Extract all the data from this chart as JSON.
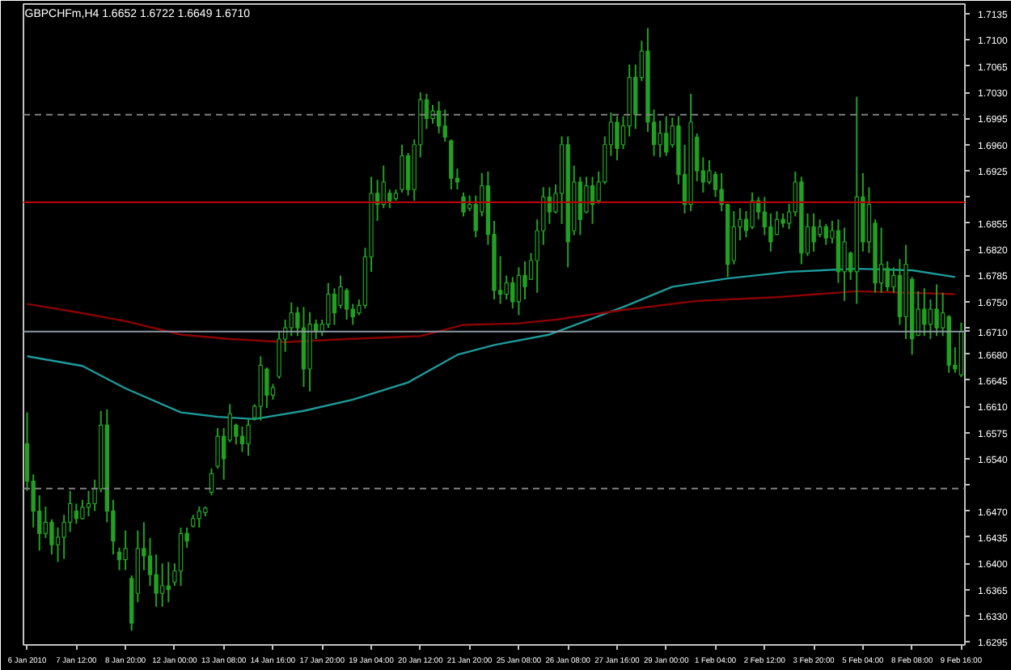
{
  "chart_data": {
    "type": "candlestick",
    "title": "GBPCHFm,H4 1.6652 1.6722 1.6649 1.6710",
    "grid": false,
    "color": "#22a022",
    "categories": [
      "6 Jan 2010",
      null,
      null,
      null,
      null,
      null,
      null,
      null,
      "7 Jan 12:00",
      null,
      null,
      null,
      null,
      null,
      null,
      null,
      "8 Jan 20:00",
      null,
      null,
      null,
      null,
      null,
      null,
      null,
      "12 Jan 00:00",
      null,
      null,
      null,
      null,
      null,
      null,
      null,
      "13 Jan 08:00",
      null,
      null,
      null,
      null,
      null,
      null,
      null,
      "14 Jan 16:00",
      null,
      null,
      null,
      null,
      null,
      null,
      null,
      "17 Jan 20:00",
      null,
      null,
      null,
      null,
      null,
      null,
      null,
      "19 Jan 04:00",
      null,
      null,
      null,
      null,
      null,
      null,
      null,
      "20 Jan 12:00",
      null,
      null,
      null,
      null,
      null,
      null,
      null,
      "21 Jan 20:00",
      null,
      null,
      null,
      null,
      null,
      null,
      null,
      "25 Jan 08:00",
      null,
      null,
      null,
      null,
      null,
      null,
      null,
      "26 Jan 08:00",
      null,
      null,
      null,
      null,
      null,
      null,
      null,
      "27 Jan 16:00",
      null,
      null,
      null,
      null,
      null,
      null,
      null,
      "29 Jan 00:00",
      null,
      null,
      null,
      null,
      null,
      null,
      null,
      "1 Feb 04:00",
      null,
      null,
      null,
      null,
      null,
      null,
      null,
      "2 Feb 12:00",
      null,
      null,
      null,
      null,
      null,
      null,
      null,
      "3 Feb 20:00",
      null,
      null,
      null,
      null,
      null,
      null,
      null,
      "5 Feb 04:00",
      null,
      null,
      null,
      null,
      null,
      null,
      null,
      "8 Feb 08:00",
      null,
      null,
      null,
      null,
      null,
      null,
      null,
      "9 Feb 16:00"
    ],
    "ohlc": [
      [
        1.656,
        1.6602,
        1.6497,
        1.651
      ],
      [
        1.651,
        1.6519,
        1.6448,
        1.647
      ],
      [
        1.647,
        1.6491,
        1.6417,
        1.644
      ],
      [
        1.644,
        1.6476,
        1.6434,
        1.6455
      ],
      [
        1.6455,
        1.6459,
        1.6412,
        1.6425
      ],
      [
        1.6425,
        1.6448,
        1.6402,
        1.6435
      ],
      [
        1.6435,
        1.6465,
        1.6406,
        1.6455
      ],
      [
        1.6455,
        1.6497,
        1.6442,
        1.648
      ],
      [
        1.647,
        1.648,
        1.6453,
        1.646
      ],
      [
        1.646,
        1.6485,
        1.6459,
        1.6475
      ],
      [
        1.6475,
        1.6497,
        1.6463,
        1.648
      ],
      [
        1.648,
        1.6512,
        1.647,
        1.65
      ],
      [
        1.65,
        1.6604,
        1.6495,
        1.6585
      ],
      [
        1.6585,
        1.6606,
        1.6455,
        1.647
      ],
      [
        1.647,
        1.6485,
        1.6412,
        1.643
      ],
      [
        1.6415,
        1.6421,
        1.6391,
        1.6405
      ],
      [
        1.6405,
        1.6444,
        1.6391,
        1.642
      ],
      [
        1.638,
        1.6384,
        1.631,
        1.632
      ],
      [
        1.636,
        1.6444,
        1.6348,
        1.642
      ],
      [
        1.642,
        1.6455,
        1.6391,
        1.641
      ],
      [
        1.641,
        1.6434,
        1.637,
        1.6385
      ],
      [
        1.6385,
        1.6412,
        1.6342,
        1.636
      ],
      [
        1.636,
        1.64,
        1.6342,
        1.637
      ],
      [
        1.637,
        1.6402,
        1.6348,
        1.6365
      ],
      [
        1.6375,
        1.64,
        1.637,
        1.639
      ],
      [
        1.639,
        1.6448,
        1.637,
        1.644
      ],
      [
        1.644,
        1.6448,
        1.6421,
        1.643
      ],
      [
        1.645,
        1.6465,
        1.6448,
        1.646
      ],
      [
        1.646,
        1.6476,
        1.6448,
        1.647
      ],
      [
        1.6468,
        1.6476,
        1.6463,
        1.6474
      ],
      [
        1.6495,
        1.6527,
        1.6491,
        1.652
      ],
      [
        1.653,
        1.6581,
        1.6527,
        1.657
      ],
      [
        1.657,
        1.6581,
        1.6512,
        1.654
      ],
      [
        1.6565,
        1.6613,
        1.6562,
        1.66
      ],
      [
        1.6585,
        1.6587,
        1.6559,
        1.657
      ],
      [
        1.657,
        1.6583,
        1.6549,
        1.656
      ],
      [
        1.656,
        1.6593,
        1.6544,
        1.6585
      ],
      [
        1.6595,
        1.6613,
        1.6591,
        1.661
      ],
      [
        1.661,
        1.6677,
        1.6591,
        1.6665
      ],
      [
        1.666,
        1.6662,
        1.6608,
        1.6625
      ],
      [
        1.6625,
        1.664,
        1.6619,
        1.6635
      ],
      [
        1.665,
        1.6711,
        1.6647,
        1.67
      ],
      [
        1.67,
        1.6726,
        1.6683,
        1.6715
      ],
      [
        1.6715,
        1.6749,
        1.6704,
        1.6735
      ],
      [
        1.6735,
        1.6743,
        1.6704,
        1.6715
      ],
      [
        1.6715,
        1.6743,
        1.6636,
        1.666
      ],
      [
        1.666,
        1.6736,
        1.663,
        1.672
      ],
      [
        1.672,
        1.6726,
        1.67,
        1.671
      ],
      [
        1.671,
        1.6726,
        1.6704,
        1.672
      ],
      [
        1.672,
        1.6775,
        1.6715,
        1.676
      ],
      [
        1.676,
        1.6768,
        1.6719,
        1.6735
      ],
      [
        1.6745,
        1.6785,
        1.6741,
        1.677
      ],
      [
        1.6765,
        1.6768,
        1.6726,
        1.674
      ],
      [
        1.674,
        1.6747,
        1.6719,
        1.673
      ],
      [
        1.6735,
        1.6753,
        1.6732,
        1.6745
      ],
      [
        1.6745,
        1.6822,
        1.6741,
        1.681
      ],
      [
        1.681,
        1.6917,
        1.679,
        1.6895
      ],
      [
        1.6895,
        1.6913,
        1.6858,
        1.688
      ],
      [
        1.688,
        1.6932,
        1.6875,
        1.691
      ],
      [
        1.6895,
        1.69,
        1.6875,
        1.6885
      ],
      [
        1.6888,
        1.69,
        1.6885,
        1.6895
      ],
      [
        1.69,
        1.696,
        1.6896,
        1.6945
      ],
      [
        1.6945,
        1.6949,
        1.6892,
        1.69
      ],
      [
        1.69,
        1.6967,
        1.6885,
        1.696
      ],
      [
        1.696,
        1.703,
        1.6943,
        1.702
      ],
      [
        1.702,
        1.7028,
        1.6981,
        1.6995
      ],
      [
        1.6995,
        1.7013,
        1.6988,
        1.7005
      ],
      [
        1.7005,
        1.7018,
        1.6975,
        1.6985
      ],
      [
        1.6985,
        1.7007,
        1.6964,
        1.697
      ],
      [
        1.6965,
        1.6967,
        1.69,
        1.6915
      ],
      [
        1.6915,
        1.6928,
        1.69,
        1.691
      ],
      [
        1.689,
        1.6896,
        1.6864,
        1.687
      ],
      [
        1.6875,
        1.6892,
        1.6871,
        1.688
      ],
      [
        1.688,
        1.6892,
        1.6836,
        1.6845
      ],
      [
        1.687,
        1.6922,
        1.6864,
        1.6905
      ],
      [
        1.6905,
        1.6924,
        1.6826,
        1.684
      ],
      [
        1.684,
        1.6858,
        1.6753,
        1.6765
      ],
      [
        1.6765,
        1.6811,
        1.6747,
        1.676
      ],
      [
        1.676,
        1.6785,
        1.6753,
        1.6775
      ],
      [
        1.6775,
        1.6783,
        1.6741,
        1.675
      ],
      [
        1.675,
        1.6796,
        1.6732,
        1.6785
      ],
      [
        1.6785,
        1.6804,
        1.6753,
        1.677
      ],
      [
        1.678,
        1.6815,
        1.6779,
        1.6805
      ],
      [
        1.6805,
        1.686,
        1.6762,
        1.6845
      ],
      [
        1.6845,
        1.6903,
        1.6826,
        1.689
      ],
      [
        1.689,
        1.6903,
        1.6854,
        1.687
      ],
      [
        1.687,
        1.6907,
        1.6868,
        1.6895
      ],
      [
        1.6895,
        1.6971,
        1.6854,
        1.696
      ],
      [
        1.696,
        1.6971,
        1.6796,
        1.683
      ],
      [
        1.6845,
        1.6932,
        1.6839,
        1.691
      ],
      [
        1.691,
        1.6917,
        1.6839,
        1.686
      ],
      [
        1.687,
        1.6917,
        1.6868,
        1.6905
      ],
      [
        1.6905,
        1.6917,
        1.6854,
        1.688
      ],
      [
        1.6885,
        1.6924,
        1.6881,
        1.691
      ],
      [
        1.691,
        1.6971,
        1.6907,
        1.696
      ],
      [
        1.696,
        1.7003,
        1.6945,
        1.699
      ],
      [
        1.699,
        1.6998,
        1.6939,
        1.6955
      ],
      [
        1.696,
        1.6998,
        1.6954,
        1.6985
      ],
      [
        1.6985,
        1.7067,
        1.6971,
        1.705
      ],
      [
        1.705,
        1.7067,
        1.6981,
        1.7
      ],
      [
        1.705,
        1.7099,
        1.7045,
        1.7085
      ],
      [
        1.7085,
        1.7116,
        1.6977,
        1.699
      ],
      [
        1.699,
        1.7007,
        1.6945,
        1.696
      ],
      [
        1.696,
        1.6992,
        1.6943,
        1.6975
      ],
      [
        1.6975,
        1.6998,
        1.6945,
        1.695
      ],
      [
        1.696,
        1.6996,
        1.6956,
        1.6985
      ],
      [
        1.6985,
        1.6998,
        1.6907,
        1.692
      ],
      [
        1.692,
        1.696,
        1.6868,
        1.688
      ],
      [
        1.688,
        1.7028,
        1.6871,
        1.699
      ],
      [
        1.697,
        1.6975,
        1.6911,
        1.6925
      ],
      [
        1.6925,
        1.6943,
        1.6896,
        1.691
      ],
      [
        1.691,
        1.6939,
        1.6907,
        1.6925
      ],
      [
        1.692,
        1.6924,
        1.689,
        1.69
      ],
      [
        1.69,
        1.6922,
        1.6871,
        1.688
      ],
      [
        1.688,
        1.6881,
        1.6783,
        1.68
      ],
      [
        1.6805,
        1.6871,
        1.68,
        1.685
      ],
      [
        1.685,
        1.6875,
        1.6832,
        1.686
      ],
      [
        1.686,
        1.6871,
        1.6836,
        1.6845
      ],
      [
        1.685,
        1.6896,
        1.6847,
        1.6885
      ],
      [
        1.6885,
        1.689,
        1.686,
        1.687
      ],
      [
        1.687,
        1.689,
        1.6839,
        1.685
      ],
      [
        1.685,
        1.6868,
        1.6817,
        1.683
      ],
      [
        1.684,
        1.6871,
        1.6839,
        1.686
      ],
      [
        1.686,
        1.6868,
        1.6849,
        1.6855
      ],
      [
        1.6855,
        1.6881,
        1.6847,
        1.687
      ],
      [
        1.687,
        1.6924,
        1.6864,
        1.691
      ],
      [
        1.691,
        1.6917,
        1.68,
        1.6815
      ],
      [
        1.6815,
        1.6868,
        1.6811,
        1.685
      ],
      [
        1.685,
        1.6868,
        1.6817,
        1.683
      ],
      [
        1.684,
        1.686,
        1.6836,
        1.685
      ],
      [
        1.685,
        1.6854,
        1.6826,
        1.6835
      ],
      [
        1.6835,
        1.6858,
        1.6828,
        1.6845
      ],
      [
        1.6845,
        1.686,
        1.6775,
        1.679
      ],
      [
        1.679,
        1.6849,
        1.6751,
        1.683
      ],
      [
        1.6815,
        1.6817,
        1.6779,
        1.679
      ],
      [
        1.679,
        1.7024,
        1.6747,
        1.689
      ],
      [
        1.689,
        1.6922,
        1.6817,
        1.683
      ],
      [
        1.683,
        1.6903,
        1.6815,
        1.688
      ],
      [
        1.6855,
        1.686,
        1.6762,
        1.6775
      ],
      [
        1.6775,
        1.6849,
        1.6762,
        1.68
      ],
      [
        1.6795,
        1.6804,
        1.6764,
        1.677
      ],
      [
        1.677,
        1.6796,
        1.6762,
        1.6785
      ],
      [
        1.6785,
        1.6807,
        1.6719,
        1.673
      ],
      [
        1.673,
        1.6826,
        1.67,
        1.68
      ],
      [
        1.678,
        1.6783,
        1.6679,
        1.67
      ],
      [
        1.6705,
        1.6764,
        1.6704,
        1.674
      ],
      [
        1.674,
        1.6768,
        1.6704,
        1.672
      ],
      [
        1.672,
        1.6753,
        1.67,
        1.674
      ],
      [
        1.674,
        1.6773,
        1.6704,
        1.6715
      ],
      [
        1.6715,
        1.6762,
        1.6704,
        1.6735
      ],
      [
        1.673,
        1.6732,
        1.6655,
        1.6665
      ],
      [
        1.6665,
        1.6689,
        1.6655,
        1.666
      ],
      [
        1.6652,
        1.6722,
        1.6649,
        1.671
      ]
    ],
    "series": [
      {
        "type": "line",
        "color": "#1e9a9a",
        "values": [
          1.6677,
          null,
          null,
          null,
          null,
          null,
          null,
          null,
          null,
          1.6664,
          null,
          null,
          null,
          null,
          null,
          null,
          1.6634,
          null,
          null,
          null,
          null,
          null,
          null,
          null,
          null,
          1.6602,
          null,
          null,
          null,
          null,
          null,
          1.6596,
          null,
          null,
          null,
          null,
          null,
          1.6593,
          null,
          null,
          null,
          null,
          null,
          null,
          null,
          1.6604,
          null,
          null,
          null,
          null,
          null,
          null,
          null,
          1.6619,
          null,
          null,
          null,
          null,
          null,
          null,
          null,
          null,
          1.6642,
          null,
          null,
          null,
          null,
          null,
          null,
          null,
          1.6679,
          null,
          null,
          null,
          null,
          null,
          1.6692,
          null,
          null,
          null,
          null,
          null,
          null,
          null,
          null,
          1.6706,
          null,
          null,
          null,
          null,
          null,
          null,
          null,
          null,
          null,
          null,
          null,
          1.6743,
          null,
          null,
          null,
          null,
          null,
          null,
          null,
          1.677,
          null,
          null,
          null,
          null,
          null,
          null,
          null,
          null,
          1.6781,
          null,
          null,
          null,
          null,
          null,
          null,
          null,
          null,
          null,
          1.679,
          null,
          null,
          null,
          null,
          null,
          null,
          null,
          null,
          null,
          null,
          1.6794,
          null,
          null,
          null,
          null,
          null,
          null,
          null,
          null,
          1.6792,
          null,
          null,
          null,
          null,
          null,
          null,
          1.6783,
          null
        ]
      },
      {
        "type": "line",
        "color": "#8b0000",
        "values": [
          1.6747,
          null,
          null,
          null,
          null,
          null,
          null,
          null,
          1.6736,
          null,
          null,
          null,
          null,
          null,
          null,
          null,
          1.6724,
          null,
          null,
          null,
          null,
          null,
          null,
          null,
          null,
          1.6706,
          null,
          null,
          null,
          null,
          null,
          null,
          null,
          1.67,
          null,
          null,
          null,
          null,
          null,
          null,
          null,
          null,
          1.6696,
          null,
          null,
          null,
          null,
          null,
          null,
          null,
          null,
          null,
          1.67,
          null,
          null,
          null,
          null,
          null,
          null,
          null,
          null,
          null,
          null,
          null,
          1.6704,
          null,
          null,
          null,
          null,
          null,
          null,
          1.6719,
          null,
          null,
          null,
          null,
          null,
          null,
          null,
          null,
          1.6721,
          null,
          null,
          null,
          null,
          null,
          1.6726,
          null,
          null,
          null,
          null,
          null,
          null,
          null,
          null,
          null,
          null,
          1.6739,
          null,
          null,
          null,
          null,
          null,
          null,
          null,
          null,
          null,
          null,
          null,
          1.6751,
          null,
          null,
          null,
          null,
          null,
          null,
          null,
          null,
          null,
          null,
          null,
          null,
          1.6756,
          null,
          null,
          null,
          null,
          null,
          null,
          null,
          null,
          null,
          null,
          null,
          null,
          1.6764,
          null,
          null,
          null,
          null,
          null,
          null,
          null,
          null,
          null,
          null,
          null,
          null,
          null,
          null,
          null,
          1.676,
          null
        ]
      }
    ],
    "ylim": [
      1.6291,
      1.7148
    ],
    "yticks": [
      1.7135,
      {
        "value": 1.71,
        "label": "1.7100"
      },
      1.7065,
      {
        "value": 1.703,
        "label": "1.7030"
      },
      1.6995,
      {
        "value": 1.696,
        "label": "1.6960"
      },
      1.6925,
      {
        "value": 1.689,
        "label": null
      },
      1.6855,
      {
        "value": 1.682,
        "label": "1.6820"
      },
      1.6785,
      {
        "value": 1.675,
        "label": "1.6750"
      },
      {
        "value": 1.6715,
        "label": null
      },
      {
        "value": 1.668,
        "label": "1.6680"
      },
      1.6645,
      {
        "value": 1.661,
        "label": "1.6610"
      },
      1.6575,
      {
        "value": 1.654,
        "label": "1.6540"
      },
      {
        "value": 1.6505,
        "label": null
      },
      {
        "value": 1.647,
        "label": "1.6470"
      },
      1.6435,
      {
        "value": 1.64,
        "label": "1.6400"
      },
      1.6365,
      {
        "value": 1.633,
        "label": "1.6330"
      },
      1.6295
    ],
    "ref_lines": [
      {
        "axis": "y",
        "value": 1.7,
        "color": "#808080",
        "line_style": "dashed"
      },
      {
        "axis": "y",
        "value": 1.6883,
        "color": "#c00000",
        "line_style": "solid"
      },
      {
        "axis": "y",
        "value": 1.671,
        "color": "#8c9aa5",
        "line_style": "solid",
        "label": "1.6710"
      },
      {
        "axis": "y",
        "value": 1.65,
        "color": "#808080",
        "line_style": "dashed"
      }
    ]
  }
}
